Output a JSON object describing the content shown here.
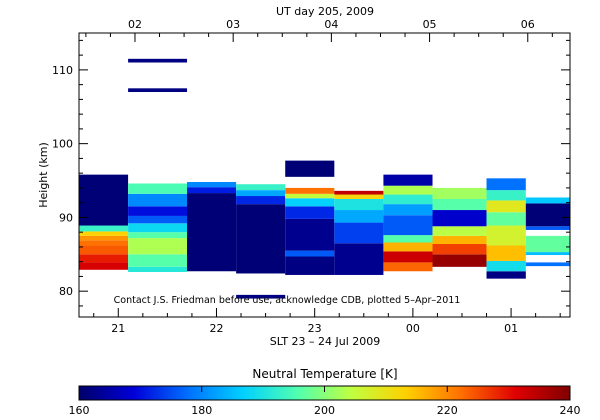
{
  "chart_data": {
    "type": "heatmap",
    "top_axis_title": "UT day 205, 2009",
    "top_ticks": [
      "02",
      "03",
      "04",
      "05",
      "06"
    ],
    "bottom_ticks": [
      "21",
      "22",
      "23",
      "00",
      "01"
    ],
    "xlabel": "SLT 23 – 24 Jul 2009",
    "ylabel": "Height (km)",
    "y_ticks": [
      80,
      90,
      100,
      110
    ],
    "ylim": [
      76.5,
      115
    ],
    "x_units": "hours SLT, continuous from 20.6 (=20:36 on 23 Jul) past midnight",
    "xlim": [
      20.6,
      25.6
    ],
    "annotation": "Contact J.S. Friedman before use, acknowledge CDB, plotted 5–Apr–2011",
    "colorbar": {
      "title": "Neutral Temperature [K]",
      "ticks": [
        160,
        180,
        200,
        220,
        240
      ],
      "range": [
        160,
        240
      ],
      "colormap": [
        "#00006a",
        "#0000d8",
        "#0070ff",
        "#00d0ff",
        "#50ffb0",
        "#c0ff40",
        "#ffd000",
        "#ff7000",
        "#e00000",
        "#800000"
      ]
    },
    "columns": [
      {
        "x0": 20.6,
        "x1": 21.1,
        "cells": [
          {
            "h0": 82.9,
            "h1": 83.9,
            "t": 232
          },
          {
            "h0": 83.9,
            "h1": 85.0,
            "t": 229
          },
          {
            "h0": 85.0,
            "h1": 86.2,
            "t": 224
          },
          {
            "h0": 86.2,
            "h1": 86.9,
            "t": 222
          },
          {
            "h0": 86.9,
            "h1": 87.5,
            "t": 219
          },
          {
            "h0": 87.5,
            "h1": 88.1,
            "t": 213
          },
          {
            "h0": 88.1,
            "h1": 88.9,
            "t": 193
          },
          {
            "h0": 88.9,
            "h1": 95.8,
            "t": 161
          }
        ]
      },
      {
        "x0": 21.1,
        "x1": 21.7,
        "cells": [
          {
            "h0": 82.6,
            "h1": 83.3,
            "t": 191
          },
          {
            "h0": 83.3,
            "h1": 85.0,
            "t": 196
          },
          {
            "h0": 85.0,
            "h1": 87.2,
            "t": 203
          },
          {
            "h0": 87.2,
            "h1": 88.0,
            "t": 196
          },
          {
            "h0": 88.0,
            "h1": 89.2,
            "t": 188
          },
          {
            "h0": 89.2,
            "h1": 90.2,
            "t": 176
          },
          {
            "h0": 90.2,
            "h1": 91.5,
            "t": 170
          },
          {
            "h0": 91.5,
            "h1": 93.2,
            "t": 180
          },
          {
            "h0": 93.2,
            "h1": 94.6,
            "t": 195
          },
          {
            "h0": 107,
            "h1": 107.5,
            "t": 162
          },
          {
            "h0": 111,
            "h1": 111.5,
            "t": 162
          }
        ]
      },
      {
        "x0": 21.7,
        "x1": 22.2,
        "cells": [
          {
            "h0": 82.7,
            "h1": 93.3,
            "t": 161
          },
          {
            "h0": 93.3,
            "h1": 94.1,
            "t": 171
          },
          {
            "h0": 94.1,
            "h1": 94.8,
            "t": 180
          }
        ]
      },
      {
        "x0": 22.2,
        "x1": 22.7,
        "cells": [
          {
            "h0": 82.4,
            "h1": 91.8,
            "t": 161
          },
          {
            "h0": 91.8,
            "h1": 92.9,
            "t": 172
          },
          {
            "h0": 92.9,
            "h1": 93.7,
            "t": 183
          },
          {
            "h0": 93.7,
            "h1": 94.5,
            "t": 193
          },
          {
            "h0": 79,
            "h1": 79.5,
            "t": 162
          }
        ]
      },
      {
        "x0": 22.7,
        "x1": 23.2,
        "cells": [
          {
            "h0": 82.2,
            "h1": 84.7,
            "t": 162
          },
          {
            "h0": 84.7,
            "h1": 85.5,
            "t": 176
          },
          {
            "h0": 85.5,
            "h1": 89.8,
            "t": 163
          },
          {
            "h0": 89.8,
            "h1": 91.5,
            "t": 172
          },
          {
            "h0": 91.5,
            "h1": 92.6,
            "t": 187
          },
          {
            "h0": 92.6,
            "h1": 93.2,
            "t": 205
          },
          {
            "h0": 93.2,
            "h1": 94.0,
            "t": 222
          },
          {
            "h0": 95.5,
            "h1": 97.7,
            "t": 161
          }
        ]
      },
      {
        "x0": 23.2,
        "x1": 23.7,
        "cells": [
          {
            "h0": 82.2,
            "h1": 86.5,
            "t": 163
          },
          {
            "h0": 86.5,
            "h1": 89.3,
            "t": 174
          },
          {
            "h0": 89.3,
            "h1": 91.0,
            "t": 183
          },
          {
            "h0": 91.0,
            "h1": 92.5,
            "t": 190
          },
          {
            "h0": 92.5,
            "h1": 93.1,
            "t": 212
          },
          {
            "h0": 93.1,
            "h1": 93.6,
            "t": 234
          }
        ]
      },
      {
        "x0": 23.7,
        "x1": 24.2,
        "cells": [
          {
            "h0": 82.7,
            "h1": 83.9,
            "t": 223
          },
          {
            "h0": 83.9,
            "h1": 85.4,
            "t": 233
          },
          {
            "h0": 85.4,
            "h1": 86.6,
            "t": 216
          },
          {
            "h0": 86.6,
            "h1": 87.6,
            "t": 196
          },
          {
            "h0": 87.6,
            "h1": 90.3,
            "t": 176
          },
          {
            "h0": 90.3,
            "h1": 91.8,
            "t": 182
          },
          {
            "h0": 91.8,
            "h1": 93.1,
            "t": 192
          },
          {
            "h0": 93.1,
            "h1": 94.3,
            "t": 203
          },
          {
            "h0": 94.3,
            "h1": 95.8,
            "t": 165
          }
        ]
      },
      {
        "x0": 24.2,
        "x1": 24.75,
        "cells": [
          {
            "h0": 83.3,
            "h1": 85.0,
            "t": 238
          },
          {
            "h0": 85.0,
            "h1": 86.4,
            "t": 226
          },
          {
            "h0": 86.4,
            "h1": 87.5,
            "t": 216
          },
          {
            "h0": 87.5,
            "h1": 88.8,
            "t": 204
          },
          {
            "h0": 88.8,
            "h1": 91.0,
            "t": 168
          },
          {
            "h0": 91.0,
            "h1": 92.5,
            "t": 196
          },
          {
            "h0": 92.5,
            "h1": 94.0,
            "t": 202
          }
        ]
      },
      {
        "x0": 24.75,
        "x1": 25.15,
        "cells": [
          {
            "h0": 81.7,
            "h1": 82.7,
            "t": 162
          },
          {
            "h0": 82.7,
            "h1": 84.1,
            "t": 189
          },
          {
            "h0": 84.1,
            "h1": 86.2,
            "t": 215
          },
          {
            "h0": 86.2,
            "h1": 88.9,
            "t": 207
          },
          {
            "h0": 88.9,
            "h1": 90.7,
            "t": 197
          },
          {
            "h0": 90.7,
            "h1": 92.3,
            "t": 209
          },
          {
            "h0": 92.3,
            "h1": 93.7,
            "t": 193
          },
          {
            "h0": 93.7,
            "h1": 95.3,
            "t": 178
          }
        ]
      },
      {
        "x0": 25.15,
        "x1": 25.6,
        "cells": [
          {
            "h0": 83.4,
            "h1": 83.9,
            "t": 178
          },
          {
            "h0": 84.9,
            "h1": 85.3,
            "t": 185
          },
          {
            "h0": 85.3,
            "h1": 87.5,
            "t": 197
          },
          {
            "h0": 88.3,
            "h1": 88.8,
            "t": 176
          },
          {
            "h0": 88.8,
            "h1": 91.9,
            "t": 161
          },
          {
            "h0": 91.9,
            "h1": 92.7,
            "t": 186
          }
        ]
      }
    ]
  }
}
